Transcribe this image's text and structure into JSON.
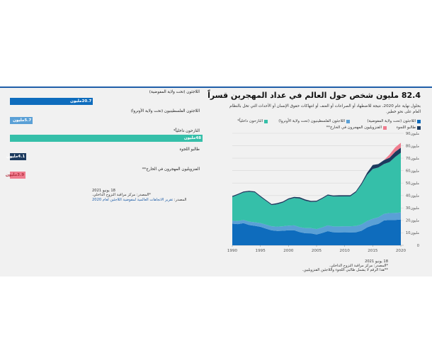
{
  "colors": {
    "idp": "#35bfa9",
    "refugees_unhcr": "#0e6cbd",
    "palestinian": "#5aa0d6",
    "asylum": "#1c3a5e",
    "venezuelans": "#ef7c8e",
    "topline": "#1f5ea8"
  },
  "right": {
    "title": "82.4 مليون شخص حول العالم في عداد المهجرين قسراً",
    "subtitle": "بحلول نهاية عام 2020، نتيجة للاضطهاد أو الصراعات أو العنف أو انتهاكات حقوق الإنسان أو الأحداث التي تخل بالنظام العام على نحو خطير.",
    "legend": {
      "refugees_unhcr": "اللاجئون (تحت ولاية المفوضية)",
      "palestinian": "اللاجئون الفلسطينيون (تحت ولاية الأونروا)",
      "idp": "النازحون داخلياً*",
      "asylum": "طالبو اللجوء",
      "venezuelans": "الفنزويليون المهجرون في الخارج**"
    },
    "footer": {
      "date": "18 يونيو 2021",
      "source": "*المصدر: مركز مراقبة النزوح الداخلي.",
      "note": "**هذا الرقم لا يشمل طالبي اللجوء واللاجئين الفنزويليين."
    }
  },
  "chart_data": [
    {
      "type": "area",
      "stacked": true,
      "x": [
        1990,
        1991,
        1992,
        1993,
        1994,
        1995,
        1996,
        1997,
        1998,
        1999,
        2000,
        2001,
        2002,
        2003,
        2004,
        2005,
        2006,
        2007,
        2008,
        2009,
        2010,
        2011,
        2012,
        2013,
        2014,
        2015,
        2016,
        2017,
        2018,
        2019,
        2020
      ],
      "ylim": [
        0,
        90
      ],
      "y_ticks": [
        0,
        10,
        20,
        30,
        40,
        50,
        60,
        70,
        80,
        90
      ],
      "y_tick_labels": [
        "0",
        "10مليون",
        "20مليون",
        "30مليون",
        "40مليون",
        "50مليون",
        "60مليون",
        "70مليون",
        "80مليون",
        "90مليون"
      ],
      "x_ticks": [
        1990,
        1995,
        2000,
        2005,
        2010,
        2015,
        2020
      ],
      "x_tick_labels": [
        "1990",
        "1995",
        "2000",
        "2005",
        "2010",
        "2015",
        "2020"
      ],
      "grid": true,
      "legend_position": "top",
      "series": [
        {
          "key": "refugees_unhcr",
          "name": "اللاجئون (تحت ولاية المفوضية)",
          "values": [
            17.4,
            17.0,
            17.8,
            16.3,
            15.7,
            14.9,
            13.4,
            12.0,
            11.5,
            11.7,
            12.1,
            12.1,
            10.6,
            9.7,
            9.6,
            8.7,
            9.9,
            11.4,
            10.5,
            10.4,
            10.5,
            10.4,
            10.5,
            11.7,
            14.4,
            16.1,
            17.2,
            19.9,
            20.4,
            20.4,
            20.7
          ]
        },
        {
          "key": "palestinian",
          "name": "اللاجئون الفلسطينيون (تحت ولاية الأونروا)",
          "values": [
            2.4,
            2.5,
            2.6,
            2.7,
            2.8,
            3.0,
            3.2,
            3.3,
            3.5,
            3.6,
            3.7,
            3.9,
            4.0,
            4.1,
            4.2,
            4.3,
            4.5,
            4.6,
            4.7,
            4.8,
            4.8,
            4.9,
            5.0,
            5.1,
            5.1,
            5.2,
            5.3,
            5.4,
            5.5,
            5.6,
            5.7
          ]
        },
        {
          "key": "idp",
          "name": "النازحون داخلياً*",
          "values": [
            19.0,
            21.0,
            22.0,
            24.0,
            24.0,
            21.0,
            19.0,
            17.0,
            18.0,
            19.0,
            21.0,
            22.0,
            23.0,
            22.0,
            21.0,
            22.0,
            23.0,
            24.0,
            24.0,
            24.0,
            24.0,
            24.0,
            27.0,
            32.0,
            37.0,
            40.0,
            40.0,
            40.0,
            41.0,
            45.0,
            48.0
          ]
        },
        {
          "key": "asylum",
          "name": "طالبو اللجوء",
          "values": [
            0.8,
            0.8,
            0.8,
            0.8,
            0.8,
            0.8,
            0.8,
            0.8,
            0.9,
            0.9,
            0.9,
            0.9,
            1.0,
            1.0,
            0.9,
            0.8,
            0.8,
            0.8,
            0.8,
            1.0,
            0.9,
            0.9,
            0.9,
            1.2,
            1.8,
            3.2,
            2.8,
            3.1,
            3.5,
            4.1,
            4.1
          ]
        },
        {
          "key": "venezuelans",
          "name": "الفنزويليون المهجرون في الخارج**",
          "values": [
            0,
            0,
            0,
            0,
            0,
            0,
            0,
            0,
            0,
            0,
            0,
            0,
            0,
            0,
            0,
            0,
            0,
            0,
            0,
            0,
            0,
            0,
            0,
            0,
            0,
            0,
            0,
            0,
            2.6,
            3.6,
            3.9
          ]
        }
      ]
    },
    {
      "type": "bar",
      "orientation": "horizontal",
      "categories": [
        "اللاجئون (تحت ولاية المفوضية)",
        "اللاجئون الفلسطينيون (تحت ولاية الأونروا)",
        "النازحون داخلياً*",
        "طالبو اللجوء",
        "الفنزويليون المهجرون في الخارج**"
      ],
      "values": [
        20.7,
        5.7,
        48,
        4.1,
        3.9
      ],
      "value_labels": [
        "20.7مليون",
        "5.7مليون",
        "48مليون",
        "4.1مليون",
        "3.9مليون"
      ],
      "colors": [
        "#0e6cbd",
        "#5aa0d6",
        "#35bfa9",
        "#1c3a5e",
        "#ef7c8e"
      ],
      "xlim": [
        0,
        48
      ]
    }
  ],
  "left": {
    "footer": {
      "date": "18 يونيو 2021",
      "source": "*المصدر: مركز مراقبة النزوح الداخلي.",
      "source2_prefix": "المصدر:",
      "source2_link": "تقرير الاتجاهات العالمية لمفوضية اللاجئين لعام 2020"
    }
  }
}
